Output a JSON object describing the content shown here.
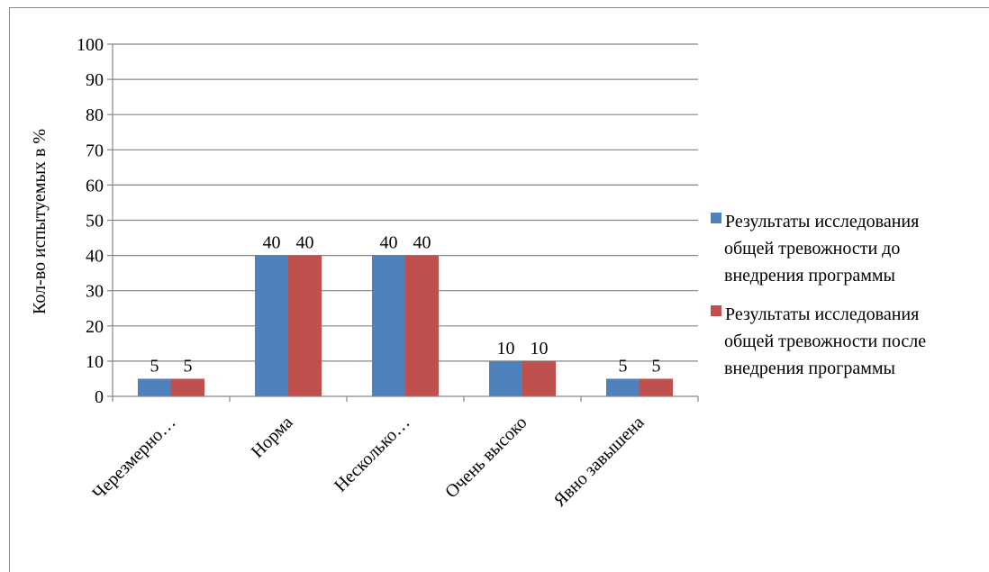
{
  "chart_data": {
    "type": "bar",
    "title": "",
    "xlabel": "",
    "ylabel": "Кол-во испытуемых в %",
    "ylim": [
      0,
      100
    ],
    "yticks": [
      0,
      10,
      20,
      30,
      40,
      50,
      60,
      70,
      80,
      90,
      100
    ],
    "grid": true,
    "legend_position": "right",
    "categories": [
      "Черезмерно…",
      "Норма",
      "Несколько…",
      "Очень высоко",
      "Явно завышена"
    ],
    "series": [
      {
        "name": "Результаты исследования общей тревожности до внедрения программы",
        "values": [
          5,
          40,
          40,
          10,
          5
        ],
        "color": "#4F81BD"
      },
      {
        "name": "Результаты исследования общей тревожности после внедрения программы",
        "values": [
          5,
          40,
          40,
          10,
          5
        ],
        "color": "#C0504D"
      }
    ],
    "legend_lines": [
      [
        "Результаты исследования",
        "общей тревожности до",
        "внедрения программы"
      ],
      [
        "Результаты исследования",
        "общей тревожности после",
        "внедрения программы"
      ]
    ]
  }
}
